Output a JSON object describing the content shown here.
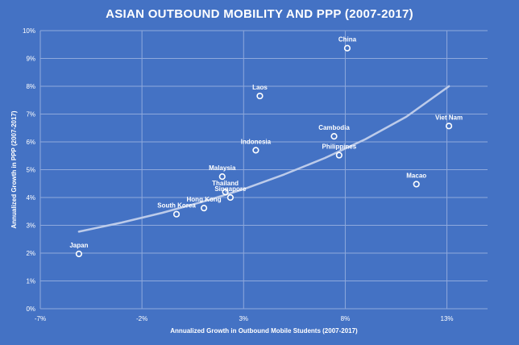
{
  "chart_data": {
    "type": "scatter",
    "title": "ASIAN OUTBOUND MOBILITY AND PPP (2007-2017)",
    "xlabel": "Annualized Growth in Outbound Mobile Students (2007-2017)",
    "ylabel": "Annualized Growth in PPP (2007-2017)",
    "xlim": [
      -7,
      15
    ],
    "ylim": [
      0,
      10
    ],
    "x_ticks": [
      -7,
      -2,
      3,
      8,
      13
    ],
    "x_tick_labels": [
      "-7%",
      "-2%",
      "3%",
      "8%",
      "13%"
    ],
    "y_ticks": [
      0,
      1,
      2,
      3,
      4,
      5,
      6,
      7,
      8,
      9,
      10
    ],
    "y_tick_labels": [
      "0%",
      "1%",
      "2%",
      "3%",
      "4%",
      "5%",
      "6%",
      "7%",
      "8%",
      "9%",
      "10%"
    ],
    "grid": true,
    "points": [
      {
        "label": "Japan",
        "x": -5.1,
        "y": 1.97
      },
      {
        "label": "South Korea",
        "x": -0.3,
        "y": 3.4
      },
      {
        "label": "Hong Kong",
        "x": 1.05,
        "y": 3.62
      },
      {
        "label": "Thailand",
        "x": 2.1,
        "y": 4.2
      },
      {
        "label": "Singapore",
        "x": 2.35,
        "y": 4.0
      },
      {
        "label": "Malaysia",
        "x": 1.95,
        "y": 4.75
      },
      {
        "label": "Indonesia",
        "x": 3.6,
        "y": 5.7
      },
      {
        "label": "Laos",
        "x": 3.8,
        "y": 7.65
      },
      {
        "label": "China",
        "x": 8.1,
        "y": 9.37
      },
      {
        "label": "Cambodia",
        "x": 7.45,
        "y": 6.2
      },
      {
        "label": "Philippines",
        "x": 7.7,
        "y": 5.52
      },
      {
        "label": "Macao",
        "x": 11.5,
        "y": 4.48
      },
      {
        "label": "Viet Nam",
        "x": 13.1,
        "y": 6.57
      }
    ],
    "trendline": {
      "type": "exponential",
      "x": [
        -5.1,
        -3,
        -1,
        1,
        3,
        5,
        7,
        9,
        11,
        13.1
      ],
      "y": [
        2.77,
        3.1,
        3.45,
        3.85,
        4.3,
        4.83,
        5.42,
        6.1,
        6.9,
        8.0
      ]
    },
    "colors": {
      "background": "#4472c4",
      "text": "#ffffff",
      "grid": "#8fa9dc",
      "trendline": "#bccbea",
      "marker_fill": "#4472c4",
      "marker_stroke": "#ffffff"
    }
  }
}
